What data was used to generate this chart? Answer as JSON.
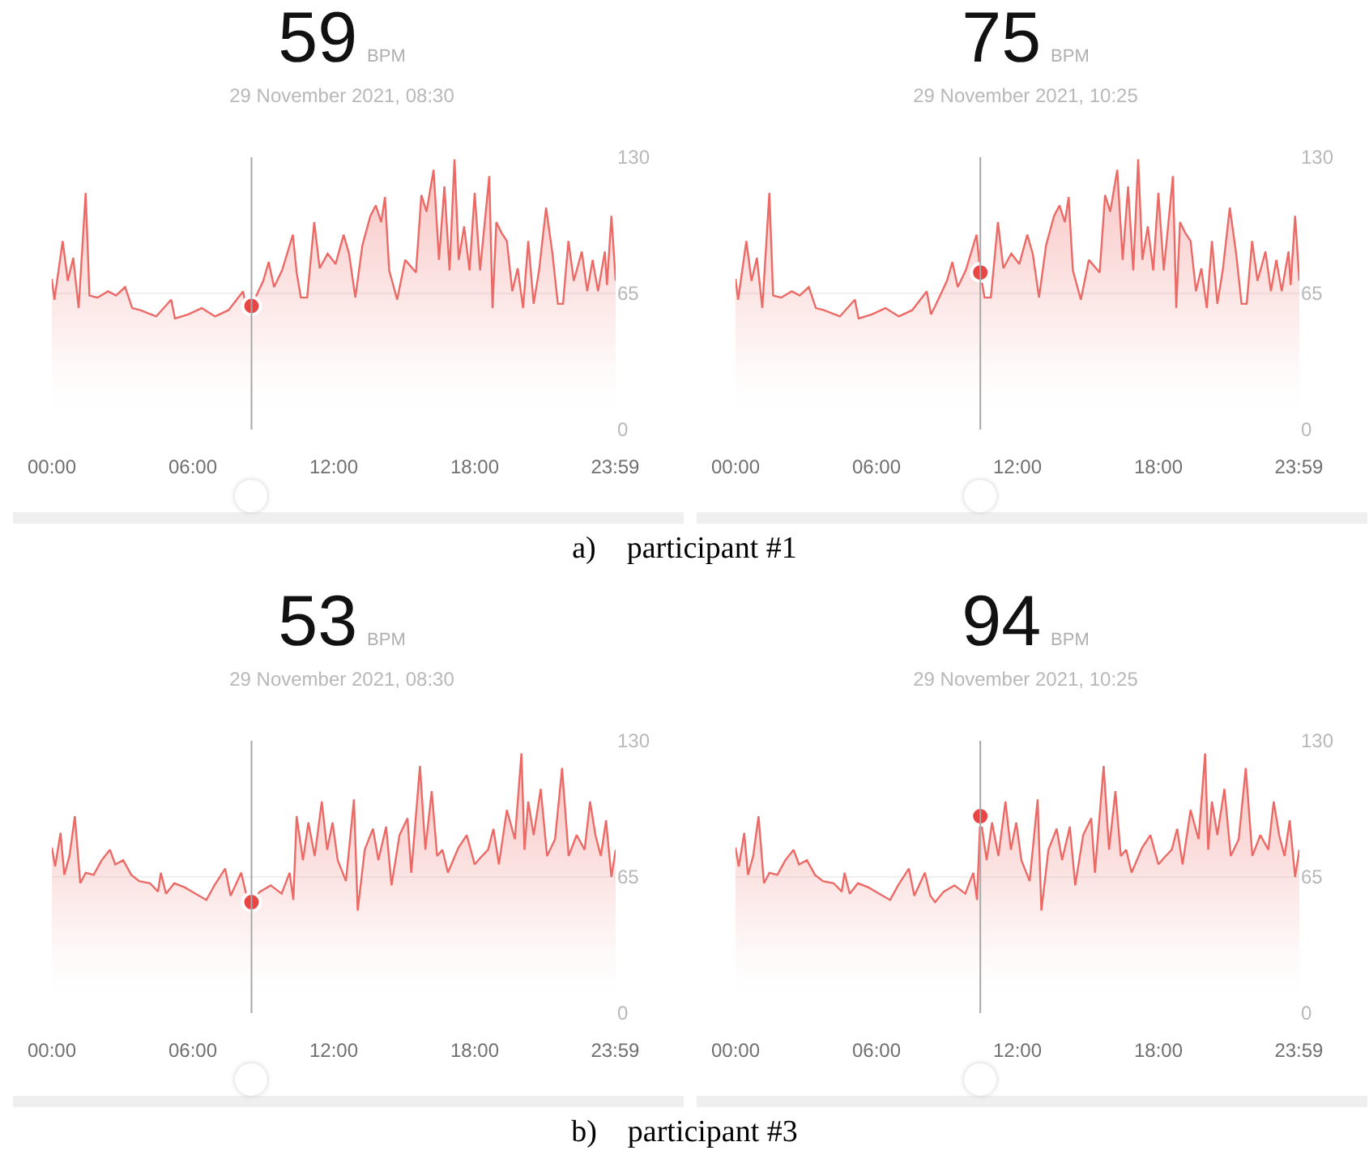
{
  "chart_data": [
    {
      "type": "area",
      "title": "59",
      "subtitle": "29 November 2021, 08:30",
      "annotations": [
        "BPM",
        "a)    participant #1"
      ],
      "x": [
        0,
        0.11,
        0.46,
        0.68,
        0.91,
        1.14,
        1.44,
        1.6,
        1.94,
        2.39,
        2.73,
        3.12,
        3.42,
        3.76,
        4.44,
        5.08,
        5.24,
        5.81,
        6.38,
        6.95,
        7.52,
        8.14,
        8.32,
        8.5,
        9.0,
        9.23,
        9.46,
        9.8,
        10.26,
        10.42,
        10.6,
        10.87,
        11.17,
        11.4,
        11.74,
        12.08,
        12.42,
        12.65,
        12.92,
        13.22,
        13.56,
        13.79,
        14.02,
        14.18,
        14.36,
        14.7,
        15.04,
        15.5,
        15.73,
        15.95,
        16.25,
        16.48,
        16.71,
        16.93,
        17.14,
        17.32,
        17.55,
        17.78,
        18.0,
        18.23,
        18.62,
        18.76,
        18.92,
        19.14,
        19.37,
        19.6,
        19.83,
        20.06,
        20.28,
        20.51,
        20.74,
        21.04,
        21.31,
        21.54,
        21.76,
        21.99,
        22.22,
        22.56,
        22.79,
        23.02,
        23.25,
        23.54,
        23.63,
        23.82,
        24.0
      ],
      "series": [
        {
          "color": "#ec6a66",
          "values": [
            72,
            62,
            90,
            71,
            82,
            58,
            113,
            64,
            63,
            66,
            64,
            68,
            58,
            57,
            54,
            62,
            53,
            55,
            58,
            54,
            57,
            66,
            55,
            59,
            71,
            80,
            68,
            76,
            93,
            75,
            63,
            63,
            99,
            77,
            84,
            79,
            93,
            84,
            63,
            88,
            102,
            107,
            99,
            111,
            76,
            62,
            81,
            75,
            112,
            104,
            124,
            81,
            116,
            76,
            129,
            81,
            97,
            76,
            113,
            76,
            121,
            58,
            99,
            94,
            90,
            66,
            77,
            58,
            90,
            60,
            76,
            106,
            84,
            60,
            60,
            90,
            71,
            85,
            66,
            81,
            66,
            85,
            69,
            102,
            71
          ]
        },
        {
          "type": "scatter",
          "color": "#e84545",
          "values": [
            null,
            null,
            null,
            null,
            null,
            null,
            null,
            null,
            null,
            null,
            null,
            null,
            null,
            null,
            null,
            null,
            null,
            null,
            null,
            null,
            null,
            null,
            null,
            59,
            null,
            null,
            null,
            null,
            null,
            null,
            null,
            null,
            null,
            null,
            null,
            null,
            null,
            null,
            null,
            null,
            null,
            null,
            null,
            null,
            null,
            null,
            null,
            null,
            null,
            null,
            null,
            null,
            null,
            null,
            null,
            null,
            null,
            null,
            null,
            null,
            null,
            null,
            null,
            null,
            null,
            null,
            null,
            null,
            null,
            null,
            null,
            null,
            null,
            null,
            null,
            null,
            null,
            null,
            null,
            null,
            null,
            null,
            null,
            null,
            null
          ]
        }
      ],
      "xlim": [
        0,
        24
      ],
      "xticks": [
        {
          "value": 0,
          "label": "00:00"
        },
        {
          "value": 6,
          "label": "06:00"
        },
        {
          "value": 12,
          "label": "12:00"
        },
        {
          "value": 18,
          "label": "18:00"
        },
        {
          "value": 23.98,
          "label": "23:59"
        }
      ],
      "ylim": [
        0,
        130
      ],
      "yticks": [
        0,
        65,
        130
      ],
      "grid": "y",
      "ref_lines": [
        {
          "axis": "x",
          "value": 8.5,
          "color": "#a8a8a8"
        }
      ]
    },
    {
      "type": "area",
      "title": "75",
      "subtitle": "29 November 2021, 10:25",
      "annotations": [
        "BPM"
      ],
      "x": [
        0,
        0.11,
        0.46,
        0.68,
        0.91,
        1.14,
        1.44,
        1.6,
        1.94,
        2.39,
        2.73,
        3.12,
        3.42,
        3.76,
        4.44,
        5.08,
        5.24,
        5.81,
        6.38,
        6.95,
        7.52,
        8.14,
        8.32,
        8.5,
        9.0,
        9.23,
        9.46,
        9.8,
        10.26,
        10.42,
        10.6,
        10.87,
        11.17,
        11.4,
        11.74,
        12.08,
        12.42,
        12.65,
        12.92,
        13.22,
        13.56,
        13.79,
        14.02,
        14.18,
        14.36,
        14.7,
        15.04,
        15.5,
        15.73,
        15.95,
        16.25,
        16.48,
        16.71,
        16.93,
        17.14,
        17.32,
        17.55,
        17.78,
        18.0,
        18.23,
        18.62,
        18.76,
        18.92,
        19.14,
        19.37,
        19.6,
        19.83,
        20.06,
        20.28,
        20.51,
        20.74,
        21.04,
        21.31,
        21.54,
        21.76,
        21.99,
        22.22,
        22.56,
        22.79,
        23.02,
        23.25,
        23.54,
        23.63,
        23.82,
        24.0
      ],
      "series": [
        {
          "color": "#ec6a66",
          "values": [
            72,
            62,
            90,
            71,
            82,
            58,
            113,
            64,
            63,
            66,
            64,
            68,
            58,
            57,
            54,
            62,
            53,
            55,
            58,
            54,
            57,
            66,
            55,
            59,
            71,
            80,
            68,
            76,
            93,
            75,
            63,
            63,
            99,
            77,
            84,
            79,
            93,
            84,
            63,
            88,
            102,
            107,
            99,
            111,
            76,
            62,
            81,
            75,
            112,
            104,
            124,
            81,
            116,
            76,
            129,
            81,
            97,
            76,
            113,
            76,
            121,
            58,
            99,
            94,
            90,
            66,
            77,
            58,
            90,
            60,
            76,
            106,
            84,
            60,
            60,
            90,
            71,
            85,
            66,
            81,
            66,
            85,
            69,
            102,
            71
          ]
        },
        {
          "type": "scatter",
          "color": "#e84545",
          "values": [
            null,
            null,
            null,
            null,
            null,
            null,
            null,
            null,
            null,
            null,
            null,
            null,
            null,
            null,
            null,
            null,
            null,
            null,
            null,
            null,
            null,
            null,
            null,
            null,
            null,
            null,
            null,
            null,
            null,
            75,
            null,
            null,
            null,
            null,
            null,
            null,
            null,
            null,
            null,
            null,
            null,
            null,
            null,
            null,
            null,
            null,
            null,
            null,
            null,
            null,
            null,
            null,
            null,
            null,
            null,
            null,
            null,
            null,
            null,
            null,
            null,
            null,
            null,
            null,
            null,
            null,
            null,
            null,
            null,
            null,
            null,
            null,
            null,
            null,
            null,
            null,
            null,
            null,
            null,
            null,
            null,
            null,
            null,
            null,
            null
          ]
        }
      ],
      "xlim": [
        0,
        24
      ],
      "xticks": [
        {
          "value": 0,
          "label": "00:00"
        },
        {
          "value": 6,
          "label": "06:00"
        },
        {
          "value": 12,
          "label": "12:00"
        },
        {
          "value": 18,
          "label": "18:00"
        },
        {
          "value": 23.98,
          "label": "23:59"
        }
      ],
      "ylim": [
        0,
        130
      ],
      "yticks": [
        0,
        65,
        130
      ],
      "grid": "y",
      "ref_lines": [
        {
          "axis": "x",
          "value": 10.42,
          "color": "#a8a8a8"
        }
      ]
    },
    {
      "type": "area",
      "title": "53",
      "subtitle": "29 November 2021, 08:30",
      "annotations": [
        "BPM",
        "b)    participant #3"
      ],
      "x": [
        0,
        0.14,
        0.37,
        0.53,
        0.75,
        0.98,
        1.21,
        1.44,
        1.78,
        2.12,
        2.47,
        2.7,
        3.04,
        3.38,
        3.72,
        4.18,
        4.52,
        4.64,
        4.86,
        5.21,
        5.66,
        6.12,
        6.58,
        6.92,
        7.38,
        7.61,
        8.06,
        8.29,
        8.5,
        8.86,
        9.32,
        9.78,
        10.12,
        10.28,
        10.42,
        10.69,
        10.92,
        11.19,
        11.49,
        11.72,
        11.95,
        12.17,
        12.52,
        12.86,
        13.02,
        13.32,
        13.67,
        13.9,
        14.23,
        14.46,
        14.8,
        15.14,
        15.3,
        15.67,
        15.9,
        16.17,
        16.4,
        16.63,
        16.86,
        17.31,
        17.66,
        18.0,
        18.23,
        18.57,
        18.8,
        19.03,
        19.37,
        19.71,
        19.99,
        20.12,
        20.28,
        20.51,
        20.81,
        21.08,
        21.42,
        21.72,
        22.0,
        22.34,
        22.68,
        22.91,
        23.14,
        23.37,
        23.59,
        23.82,
        24.0
      ],
      "series": [
        {
          "color": "#ec6a66",
          "values": [
            79,
            70,
            86,
            66,
            75,
            94,
            62,
            67,
            66,
            73,
            78,
            71,
            73,
            66,
            63,
            62,
            58,
            67,
            57,
            62,
            60,
            57,
            54,
            61,
            69,
            56,
            67,
            56,
            53,
            58,
            61,
            57,
            67,
            54,
            94,
            73,
            91,
            75,
            101,
            78,
            91,
            73,
            63,
            102,
            49,
            78,
            88,
            73,
            89,
            61,
            85,
            93,
            67,
            118,
            78,
            106,
            75,
            78,
            67,
            79,
            85,
            71,
            74,
            78,
            88,
            71,
            97,
            83,
            124,
            78,
            101,
            85,
            107,
            75,
            83,
            117,
            75,
            85,
            78,
            101,
            85,
            75,
            92,
            65,
            78
          ]
        },
        {
          "type": "scatter",
          "color": "#e84545",
          "values": [
            null,
            null,
            null,
            null,
            null,
            null,
            null,
            null,
            null,
            null,
            null,
            null,
            null,
            null,
            null,
            null,
            null,
            null,
            null,
            null,
            null,
            null,
            null,
            null,
            null,
            null,
            null,
            null,
            53,
            null,
            null,
            null,
            null,
            null,
            null,
            null,
            null,
            null,
            null,
            null,
            null,
            null,
            null,
            null,
            null,
            null,
            null,
            null,
            null,
            null,
            null,
            null,
            null,
            null,
            null,
            null,
            null,
            null,
            null,
            null,
            null,
            null,
            null,
            null,
            null,
            null,
            null,
            null,
            null,
            null,
            null,
            null,
            null,
            null,
            null,
            null,
            null,
            null,
            null,
            null,
            null,
            null,
            null,
            null,
            null
          ]
        }
      ],
      "xlim": [
        0,
        24
      ],
      "xticks": [
        {
          "value": 0,
          "label": "00:00"
        },
        {
          "value": 6,
          "label": "06:00"
        },
        {
          "value": 12,
          "label": "12:00"
        },
        {
          "value": 18,
          "label": "18:00"
        },
        {
          "value": 23.98,
          "label": "23:59"
        }
      ],
      "ylim": [
        0,
        130
      ],
      "yticks": [
        0,
        65,
        130
      ],
      "grid": "y",
      "ref_lines": [
        {
          "axis": "x",
          "value": 8.5,
          "color": "#a8a8a8"
        }
      ]
    },
    {
      "type": "area",
      "title": "94",
      "subtitle": "29 November 2021, 10:25",
      "annotations": [
        "BPM"
      ],
      "x": [
        0,
        0.14,
        0.37,
        0.53,
        0.75,
        0.98,
        1.21,
        1.44,
        1.78,
        2.12,
        2.47,
        2.7,
        3.04,
        3.38,
        3.72,
        4.18,
        4.52,
        4.64,
        4.86,
        5.21,
        5.66,
        6.12,
        6.58,
        6.92,
        7.38,
        7.61,
        8.06,
        8.29,
        8.5,
        8.86,
        9.32,
        9.78,
        10.12,
        10.28,
        10.42,
        10.69,
        10.92,
        11.19,
        11.49,
        11.72,
        11.95,
        12.17,
        12.52,
        12.86,
        13.02,
        13.32,
        13.67,
        13.9,
        14.23,
        14.46,
        14.8,
        15.14,
        15.3,
        15.67,
        15.9,
        16.17,
        16.4,
        16.63,
        16.86,
        17.31,
        17.66,
        18.0,
        18.23,
        18.57,
        18.8,
        19.03,
        19.37,
        19.71,
        19.99,
        20.12,
        20.28,
        20.51,
        20.81,
        21.08,
        21.42,
        21.72,
        22.0,
        22.34,
        22.68,
        22.91,
        23.14,
        23.37,
        23.59,
        23.82,
        24.0
      ],
      "series": [
        {
          "color": "#ec6a66",
          "values": [
            79,
            70,
            86,
            66,
            75,
            94,
            62,
            67,
            66,
            73,
            78,
            71,
            73,
            66,
            63,
            62,
            58,
            67,
            57,
            62,
            60,
            57,
            54,
            61,
            69,
            56,
            67,
            56,
            53,
            58,
            61,
            57,
            67,
            54,
            94,
            73,
            91,
            75,
            101,
            78,
            91,
            73,
            63,
            102,
            49,
            78,
            88,
            73,
            89,
            61,
            85,
            93,
            67,
            118,
            78,
            106,
            75,
            78,
            67,
            79,
            85,
            71,
            74,
            78,
            88,
            71,
            97,
            83,
            124,
            78,
            101,
            85,
            107,
            75,
            83,
            117,
            75,
            85,
            78,
            101,
            85,
            75,
            92,
            65,
            78
          ]
        },
        {
          "type": "scatter",
          "color": "#e84545",
          "values": [
            null,
            null,
            null,
            null,
            null,
            null,
            null,
            null,
            null,
            null,
            null,
            null,
            null,
            null,
            null,
            null,
            null,
            null,
            null,
            null,
            null,
            null,
            null,
            null,
            null,
            null,
            null,
            null,
            null,
            null,
            null,
            null,
            null,
            null,
            94,
            null,
            null,
            null,
            null,
            null,
            null,
            null,
            null,
            null,
            null,
            null,
            null,
            null,
            null,
            null,
            null,
            null,
            null,
            null,
            null,
            null,
            null,
            null,
            null,
            null,
            null,
            null,
            null,
            null,
            null,
            null,
            null,
            null,
            null,
            null,
            null,
            null,
            null,
            null,
            null,
            null,
            null,
            null,
            null,
            null,
            null,
            null,
            null,
            null,
            null
          ]
        }
      ],
      "xlim": [
        0,
        24
      ],
      "xticks": [
        {
          "value": 0,
          "label": "00:00"
        },
        {
          "value": 6,
          "label": "06:00"
        },
        {
          "value": 12,
          "label": "12:00"
        },
        {
          "value": 18,
          "label": "18:00"
        },
        {
          "value": 23.98,
          "label": "23:59"
        }
      ],
      "ylim": [
        0,
        130
      ],
      "yticks": [
        0,
        65,
        130
      ],
      "grid": "y",
      "ref_lines": [
        {
          "axis": "x",
          "value": 10.42,
          "color": "#a8a8a8"
        }
      ]
    }
  ]
}
